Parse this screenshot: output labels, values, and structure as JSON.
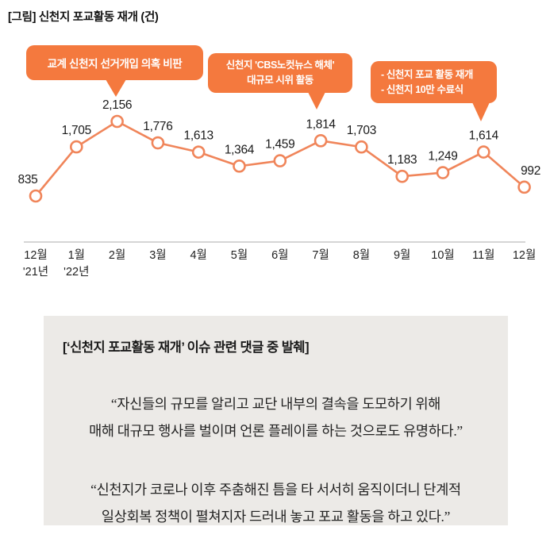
{
  "chart_data": {
    "type": "line",
    "title": "[그림] 신천지 포교활동 재개 (건)",
    "unit": "건",
    "categories": [
      "12월",
      "1월",
      "2월",
      "3월",
      "4월",
      "5월",
      "6월",
      "7월",
      "8월",
      "9월",
      "10월",
      "11월",
      "12월"
    ],
    "category_sublabels": [
      "'21년",
      "'22년",
      "",
      "",
      "",
      "",
      "",
      "",
      "",
      "",
      "",
      "",
      ""
    ],
    "values": [
      835,
      1705,
      2156,
      1776,
      1613,
      1364,
      1459,
      1814,
      1703,
      1183,
      1249,
      1614,
      992
    ],
    "value_labels": [
      "835",
      "1,705",
      "2,156",
      "1,776",
      "1,613",
      "1,364",
      "1,459",
      "1,814",
      "1,703",
      "1,183",
      "1,249",
      "1,614",
      "992"
    ],
    "ylim": [
      835,
      2156
    ],
    "grid": false,
    "legend": false,
    "line_color": "#F0855A",
    "marker_style": "open-circle",
    "marker_fill": "#FFFFFF",
    "axis_color": "#ABABAB",
    "label_color": "#1A1A1A",
    "accent_color": "#F4793E",
    "annotations": [
      {
        "text": "교계 신천지 선거개입 의혹 비판",
        "target_category": "2월",
        "target_value": 2156
      },
      {
        "text": "신천지 'CBS노컷뉴스 해체'\n대규모 시위 활동",
        "target_category": "7월",
        "target_value": 1814
      },
      {
        "text": "- 신천지 포교 활동 재개\n- 신천지 10만 수료식",
        "target_category": "11월",
        "target_value": 1614
      }
    ]
  },
  "quote_box": {
    "header": "[‘신천지 포교활동 재개’ 이슈 관련 댓글 중 발췌]",
    "quotes": [
      {
        "text": "“자신들의 규모를 알리고 교단 내부의 결속을 도모하기 위해\n매해 대규모 행사를 벌이며 언론 플레이를 하는 것으로도 유명하다.”"
      },
      {
        "text": "“신천지가 코로나 이후 주춤해진 틈을 타 서서히 움직이더니 단계적\n일상회복 정책이 펼쳐지자 드러내 놓고 포교 활동을 하고 있다.”"
      }
    ]
  }
}
